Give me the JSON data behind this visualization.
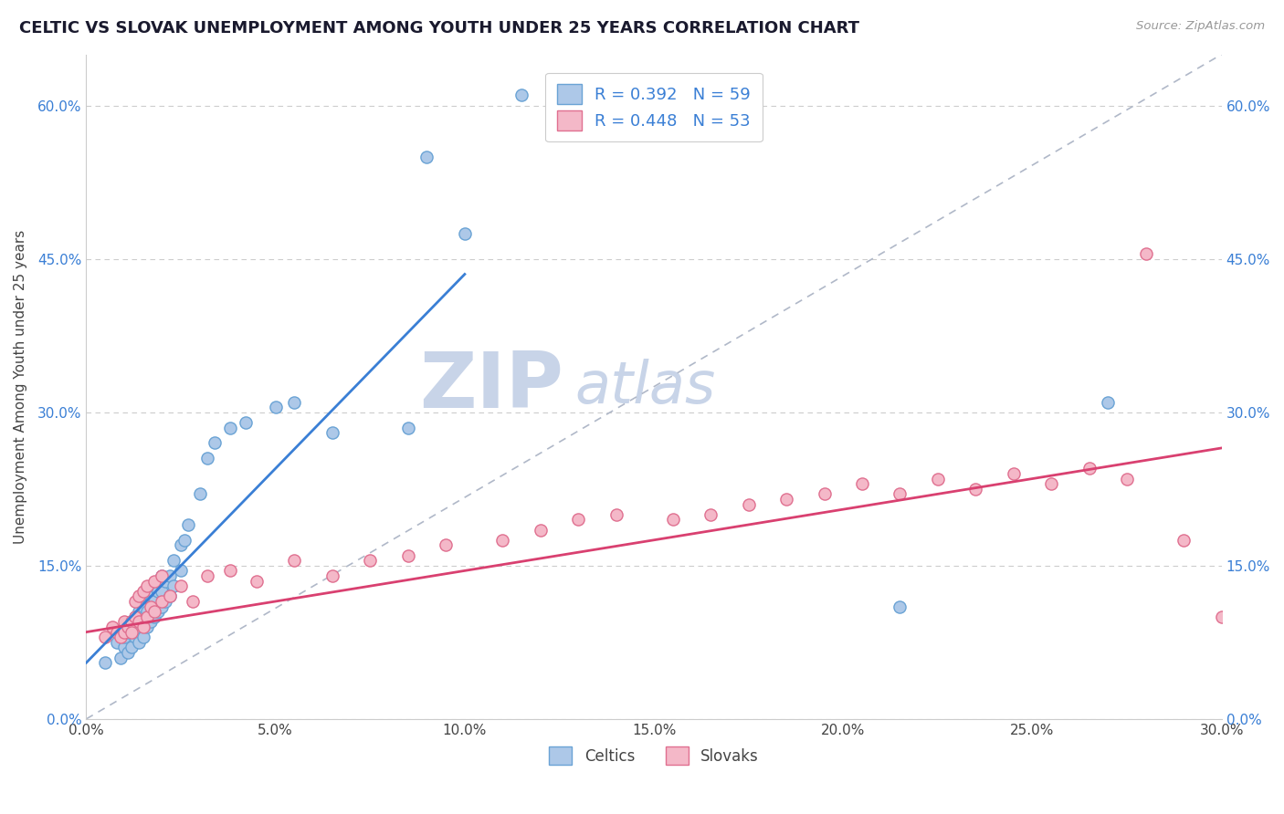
{
  "title": "CELTIC VS SLOVAK UNEMPLOYMENT AMONG YOUTH UNDER 25 YEARS CORRELATION CHART",
  "source": "Source: ZipAtlas.com",
  "ylabel": "Unemployment Among Youth under 25 years",
  "xlim": [
    0.0,
    0.3
  ],
  "ylim": [
    0.0,
    0.65
  ],
  "xticks": [
    0.0,
    0.05,
    0.1,
    0.15,
    0.2,
    0.25,
    0.3
  ],
  "xtick_labels": [
    "0.0%",
    "5.0%",
    "10.0%",
    "15.0%",
    "20.0%",
    "25.0%",
    "30.0%"
  ],
  "ytick_labels": [
    "0.0%",
    "15.0%",
    "30.0%",
    "45.0%",
    "60.0%"
  ],
  "yticks": [
    0.0,
    0.15,
    0.3,
    0.45,
    0.6
  ],
  "legend_r1": "R = 0.392",
  "legend_n1": "N = 59",
  "legend_r2": "R = 0.448",
  "legend_n2": "N = 53",
  "celtics_color": "#adc8e8",
  "celtics_edge": "#6aa3d5",
  "slovaks_color": "#f4b8c8",
  "slovaks_edge": "#e07090",
  "regression_blue": "#3a7fd5",
  "regression_pink": "#d94070",
  "diag_color": "#b0b8c8",
  "watermark_color": "#c8d4e8",
  "celtics_x": [
    0.005,
    0.008,
    0.009,
    0.01,
    0.01,
    0.01,
    0.011,
    0.011,
    0.012,
    0.012,
    0.012,
    0.013,
    0.013,
    0.013,
    0.014,
    0.014,
    0.014,
    0.014,
    0.015,
    0.015,
    0.015,
    0.015,
    0.016,
    0.016,
    0.016,
    0.017,
    0.017,
    0.018,
    0.018,
    0.018,
    0.019,
    0.019,
    0.02,
    0.02,
    0.02,
    0.021,
    0.021,
    0.022,
    0.022,
    0.023,
    0.023,
    0.025,
    0.025,
    0.026,
    0.027,
    0.03,
    0.032,
    0.034,
    0.038,
    0.042,
    0.05,
    0.055,
    0.065,
    0.085,
    0.09,
    0.1,
    0.115,
    0.215,
    0.27
  ],
  "celtics_y": [
    0.055,
    0.075,
    0.06,
    0.07,
    0.08,
    0.09,
    0.065,
    0.085,
    0.07,
    0.085,
    0.095,
    0.08,
    0.09,
    0.1,
    0.075,
    0.09,
    0.105,
    0.115,
    0.08,
    0.095,
    0.11,
    0.12,
    0.09,
    0.105,
    0.12,
    0.095,
    0.115,
    0.1,
    0.115,
    0.13,
    0.105,
    0.125,
    0.11,
    0.125,
    0.14,
    0.115,
    0.135,
    0.12,
    0.14,
    0.13,
    0.155,
    0.145,
    0.17,
    0.175,
    0.19,
    0.22,
    0.255,
    0.27,
    0.285,
    0.29,
    0.305,
    0.31,
    0.28,
    0.285,
    0.55,
    0.475,
    0.61,
    0.11,
    0.31
  ],
  "slovaks_x": [
    0.005,
    0.007,
    0.008,
    0.009,
    0.01,
    0.01,
    0.011,
    0.012,
    0.012,
    0.013,
    0.013,
    0.014,
    0.014,
    0.015,
    0.015,
    0.016,
    0.016,
    0.017,
    0.018,
    0.018,
    0.02,
    0.02,
    0.022,
    0.025,
    0.028,
    0.032,
    0.038,
    0.045,
    0.055,
    0.065,
    0.075,
    0.085,
    0.095,
    0.11,
    0.12,
    0.13,
    0.14,
    0.155,
    0.165,
    0.175,
    0.185,
    0.195,
    0.205,
    0.215,
    0.225,
    0.235,
    0.245,
    0.255,
    0.265,
    0.275,
    0.28,
    0.29,
    0.3
  ],
  "slovaks_y": [
    0.08,
    0.09,
    0.085,
    0.08,
    0.085,
    0.095,
    0.09,
    0.095,
    0.085,
    0.1,
    0.115,
    0.095,
    0.12,
    0.09,
    0.125,
    0.1,
    0.13,
    0.11,
    0.105,
    0.135,
    0.115,
    0.14,
    0.12,
    0.13,
    0.115,
    0.14,
    0.145,
    0.135,
    0.155,
    0.14,
    0.155,
    0.16,
    0.17,
    0.175,
    0.185,
    0.195,
    0.2,
    0.195,
    0.2,
    0.21,
    0.215,
    0.22,
    0.23,
    0.22,
    0.235,
    0.225,
    0.24,
    0.23,
    0.245,
    0.235,
    0.455,
    0.175,
    0.1
  ]
}
